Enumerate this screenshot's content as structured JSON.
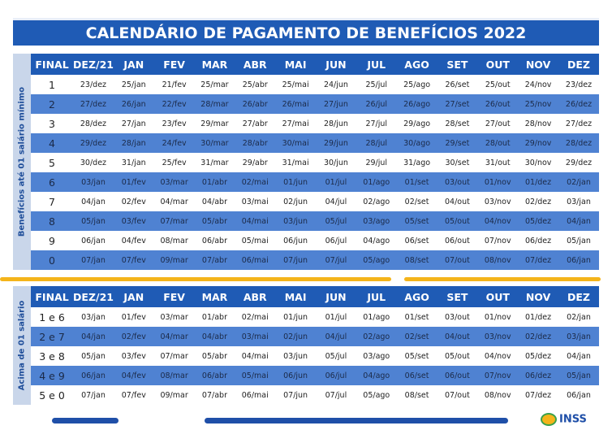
{
  "title": "CALENDÁRIO DE PAGAMENTO DE BENEFÍCIOS 2022",
  "tables": [
    {
      "side_label": "Benefícios até 01 salário mínimo",
      "header": [
        "FINAL",
        "DEZ/21",
        "JAN",
        "FEV",
        "MAR",
        "ABR",
        "MAI",
        "JUN",
        "JUL",
        "AGO",
        "SET",
        "OUT",
        "NOV",
        "DEZ"
      ],
      "rows": [
        [
          "1",
          "23/dez",
          "25/jan",
          "21/fev",
          "25/mar",
          "25/abr",
          "25/mai",
          "24/jun",
          "25/jul",
          "25/ago",
          "26/set",
          "25/out",
          "24/nov",
          "23/dez"
        ],
        [
          "2",
          "27/dez",
          "26/jan",
          "22/fev",
          "28/mar",
          "26/abr",
          "26/mai",
          "27/jun",
          "26/jul",
          "26/ago",
          "27/set",
          "26/out",
          "25/nov",
          "26/dez"
        ],
        [
          "3",
          "28/dez",
          "27/jan",
          "23/fev",
          "29/mar",
          "27/abr",
          "27/mai",
          "28/jun",
          "27/jul",
          "29/ago",
          "28/set",
          "27/out",
          "28/nov",
          "27/dez"
        ],
        [
          "4",
          "29/dez",
          "28/jan",
          "24/fev",
          "30/mar",
          "28/abr",
          "30/mai",
          "29/jun",
          "28/jul",
          "30/ago",
          "29/set",
          "28/out",
          "29/nov",
          "28/dez"
        ],
        [
          "5",
          "30/dez",
          "31/jan",
          "25/fev",
          "31/mar",
          "29/abr",
          "31/mai",
          "30/jun",
          "29/jul",
          "31/ago",
          "30/set",
          "31/out",
          "30/nov",
          "29/dez"
        ],
        [
          "6",
          "03/jan",
          "01/fev",
          "03/mar",
          "01/abr",
          "02/mai",
          "01/jun",
          "01/jul",
          "01/ago",
          "01/set",
          "03/out",
          "01/nov",
          "01/dez",
          "02/jan"
        ],
        [
          "7",
          "04/jan",
          "02/fev",
          "04/mar",
          "04/abr",
          "03/mai",
          "02/jun",
          "04/jul",
          "02/ago",
          "02/set",
          "04/out",
          "03/nov",
          "02/dez",
          "03/jan"
        ],
        [
          "8",
          "05/jan",
          "03/fev",
          "07/mar",
          "05/abr",
          "04/mai",
          "03/jun",
          "05/jul",
          "03/ago",
          "05/set",
          "05/out",
          "04/nov",
          "05/dez",
          "04/jan"
        ],
        [
          "9",
          "06/jan",
          "04/fev",
          "08/mar",
          "06/abr",
          "05/mai",
          "06/jun",
          "06/jul",
          "04/ago",
          "06/set",
          "06/out",
          "07/nov",
          "06/dez",
          "05/jan"
        ],
        [
          "0",
          "07/jan",
          "07/fev",
          "09/mar",
          "07/abr",
          "06/mai",
          "07/jun",
          "07/jul",
          "05/ago",
          "08/set",
          "07/out",
          "08/nov",
          "07/dez",
          "06/jan"
        ]
      ]
    },
    {
      "side_label": "Acima de 01 salário",
      "header": [
        "FINAL",
        "DEZ/21",
        "JAN",
        "FEV",
        "MAR",
        "ABR",
        "MAI",
        "JUN",
        "JUL",
        "AGO",
        "SET",
        "OUT",
        "NOV",
        "DEZ"
      ],
      "rows": [
        [
          "1 e 6",
          "03/jan",
          "01/fev",
          "03/mar",
          "01/abr",
          "02/mai",
          "01/jun",
          "01/jul",
          "01/ago",
          "01/set",
          "03/out",
          "01/nov",
          "01/dez",
          "02/jan"
        ],
        [
          "2 e 7",
          "04/jan",
          "02/fev",
          "04/mar",
          "04/abr",
          "03/mai",
          "02/jun",
          "04/jul",
          "02/ago",
          "02/set",
          "04/out",
          "03/nov",
          "02/dez",
          "03/jan"
        ],
        [
          "3 e 8",
          "05/jan",
          "03/fev",
          "07/mar",
          "05/abr",
          "04/mai",
          "03/jun",
          "05/jul",
          "03/ago",
          "05/set",
          "05/out",
          "04/nov",
          "05/dez",
          "04/jan"
        ],
        [
          "4 e 9",
          "06/jan",
          "04/fev",
          "08/mar",
          "06/abr",
          "05/mai",
          "06/jun",
          "06/jul",
          "04/ago",
          "06/set",
          "06/out",
          "07/nov",
          "06/dez",
          "05/jan"
        ],
        [
          "5 e 0",
          "07/jan",
          "07/fev",
          "09/mar",
          "07/abr",
          "06/mai",
          "07/jun",
          "07/jul",
          "05/ago",
          "08/set",
          "07/out",
          "08/nov",
          "07/dez",
          "06/jan"
        ]
      ]
    }
  ],
  "logo": "INSS"
}
